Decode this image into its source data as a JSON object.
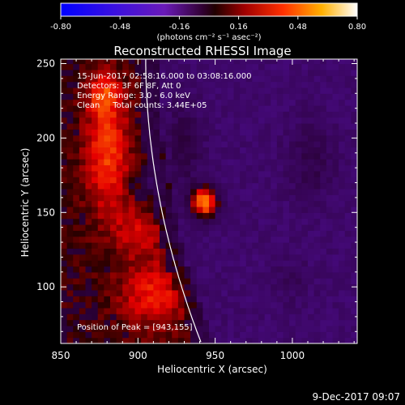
{
  "colorbar": {
    "ticks": [
      "-0.80",
      "-0.48",
      "-0.16",
      "0.16",
      "0.48",
      "0.80"
    ],
    "unit_label": "(photons cm⁻² s⁻¹ asec⁻²)",
    "range": [
      -0.8,
      0.8
    ]
  },
  "chart_data": {
    "type": "heatmap",
    "title": "Reconstructed RHESSI Image",
    "xlabel": "Heliocentric X (arcsec)",
    "ylabel": "Heliocentric Y (arcsec)",
    "xlim": [
      850,
      1042
    ],
    "ylim": [
      62,
      253
    ],
    "x_ticks": [
      "850",
      "900",
      "950",
      "1000"
    ],
    "y_ticks": [
      "100",
      "150",
      "200",
      "250"
    ],
    "info_lines": [
      "15-Jun-2017 02:58:16.000 to 03:08:16.000",
      "Detectors: 3F 6F 8F, Att 0",
      "Energy Range: 3.0 - 6.0 keV",
      "Clean     Total counts: 3.44E+05"
    ],
    "peak_label": "Position of Peak = [943,155]",
    "peak": [
      943,
      155
    ],
    "colormap": "red-blue diverging"
  },
  "footer": {
    "date": "9-Dec-2017 09:07"
  }
}
